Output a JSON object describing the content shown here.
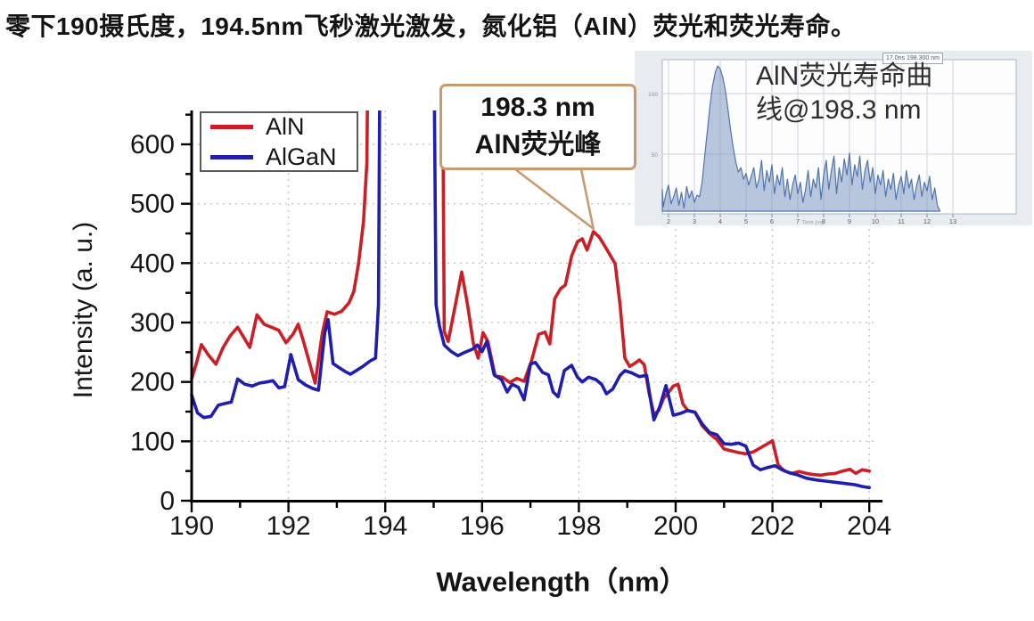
{
  "page": {
    "title": "零下190摄氏度，194.5nm飞秒激光激发，氮化铝（AlN）荧光和荧光寿命。"
  },
  "chart_data": [
    {
      "type": "line",
      "xlabel": "Wavelength（nm）",
      "ylabel": "Intensity (a. u.)",
      "xlim": [
        190,
        204
      ],
      "ylim": [
        0,
        657
      ],
      "x_ticks": [
        190,
        192,
        194,
        196,
        198,
        200,
        202,
        204
      ],
      "x_minor_ticks": [
        191,
        193,
        195,
        197,
        199,
        201,
        203
      ],
      "y_ticks": [
        0,
        100,
        200,
        300,
        400,
        500,
        600
      ],
      "y_minor_ticks": [
        50,
        150,
        250,
        350,
        450,
        550,
        650
      ],
      "grid": "dotted",
      "grid_color": "#c6c6c6",
      "axis_color": "#000000",
      "legend_position": "top-left",
      "note": "Both curves go off-scale (above plot top) between ~193.7 nm and ~195.1 nm (scattered 194.5 nm excitation laser region)",
      "series": [
        {
          "name": "AlN",
          "color": "#cb1f27",
          "points": [
            [
              190,
              205
            ],
            [
              190.1,
              232
            ],
            [
              190.2,
              263
            ],
            [
              190.35,
              245
            ],
            [
              190.5,
              230
            ],
            [
              190.65,
              258
            ],
            [
              190.8,
              278
            ],
            [
              190.95,
              292
            ],
            [
              191.1,
              272
            ],
            [
              191.2,
              258
            ],
            [
              191.35,
              313
            ],
            [
              191.5,
              297
            ],
            [
              191.65,
              292
            ],
            [
              191.8,
              287
            ],
            [
              191.95,
              266
            ],
            [
              192.1,
              281
            ],
            [
              192.2,
              297
            ],
            [
              192.3,
              271
            ],
            [
              192.45,
              228
            ],
            [
              192.55,
              198
            ],
            [
              192.7,
              282
            ],
            [
              192.8,
              318
            ],
            [
              192.95,
              314
            ],
            [
              193.1,
              319
            ],
            [
              193.25,
              333
            ],
            [
              193.35,
              352
            ],
            [
              193.45,
              400
            ],
            [
              193.55,
              470
            ],
            [
              193.62,
              570
            ],
            [
              193.66,
              910
            ],
            [
              195.17,
              910
            ],
            [
              195.22,
              285
            ],
            [
              195.3,
              268
            ],
            [
              195.45,
              330
            ],
            [
              195.58,
              385
            ],
            [
              195.7,
              330
            ],
            [
              195.82,
              265
            ],
            [
              195.92,
              240
            ],
            [
              196.02,
              283
            ],
            [
              196.12,
              268
            ],
            [
              196.27,
              210
            ],
            [
              196.42,
              208
            ],
            [
              196.57,
              199
            ],
            [
              196.72,
              206
            ],
            [
              196.87,
              201
            ],
            [
              197.02,
              235
            ],
            [
              197.17,
              280
            ],
            [
              197.3,
              284
            ],
            [
              197.4,
              264
            ],
            [
              197.5,
              340
            ],
            [
              197.62,
              357
            ],
            [
              197.72,
              363
            ],
            [
              197.85,
              412
            ],
            [
              197.97,
              436
            ],
            [
              198.07,
              441
            ],
            [
              198.17,
              422
            ],
            [
              198.3,
              453
            ],
            [
              198.42,
              444
            ],
            [
              198.52,
              431
            ],
            [
              198.65,
              413
            ],
            [
              198.75,
              399
            ],
            [
              198.85,
              330
            ],
            [
              198.95,
              240
            ],
            [
              199.05,
              226
            ],
            [
              199.15,
              231
            ],
            [
              199.25,
              237
            ],
            [
              199.35,
              229
            ],
            [
              199.45,
              182
            ],
            [
              199.55,
              145
            ],
            [
              199.65,
              152
            ],
            [
              199.75,
              172
            ],
            [
              199.85,
              182
            ],
            [
              199.95,
              193
            ],
            [
              200.05,
              196
            ],
            [
              200.15,
              163
            ],
            [
              200.25,
              152
            ],
            [
              200.4,
              149
            ],
            [
              200.55,
              126
            ],
            [
              200.7,
              113
            ],
            [
              200.85,
              103
            ],
            [
              201,
              87
            ],
            [
              201.15,
              84
            ],
            [
              201.3,
              81
            ],
            [
              201.45,
              79
            ],
            [
              201.6,
              82
            ],
            [
              201.75,
              89
            ],
            [
              201.9,
              96
            ],
            [
              202,
              101
            ],
            [
              202.12,
              60
            ],
            [
              202.25,
              50
            ],
            [
              202.4,
              46
            ],
            [
              202.55,
              49
            ],
            [
              202.7,
              46
            ],
            [
              202.85,
              44
            ],
            [
              203,
              43
            ],
            [
              203.15,
              45
            ],
            [
              203.3,
              46
            ],
            [
              203.45,
              50
            ],
            [
              203.6,
              53
            ],
            [
              203.72,
              46
            ],
            [
              203.85,
              52
            ],
            [
              204,
              50
            ]
          ]
        },
        {
          "name": "AlGaN",
          "color": "#201fad",
          "points": [
            [
              190,
              178
            ],
            [
              190.12,
              148
            ],
            [
              190.25,
              140
            ],
            [
              190.4,
              142
            ],
            [
              190.55,
              161
            ],
            [
              190.7,
              164
            ],
            [
              190.82,
              166
            ],
            [
              190.95,
              205
            ],
            [
              191.1,
              196
            ],
            [
              191.25,
              193
            ],
            [
              191.4,
              198
            ],
            [
              191.55,
              200
            ],
            [
              191.68,
              202
            ],
            [
              191.8,
              190
            ],
            [
              191.92,
              192
            ],
            [
              192.05,
              246
            ],
            [
              192.2,
              204
            ],
            [
              192.35,
              195
            ],
            [
              192.5,
              189
            ],
            [
              192.62,
              186
            ],
            [
              192.75,
              282
            ],
            [
              192.82,
              305
            ],
            [
              192.92,
              231
            ],
            [
              193.05,
              224
            ],
            [
              193.18,
              217
            ],
            [
              193.28,
              213
            ],
            [
              193.42,
              220
            ],
            [
              193.55,
              227
            ],
            [
              193.7,
              236
            ],
            [
              193.8,
              240
            ],
            [
              193.86,
              330
            ],
            [
              193.9,
              910
            ],
            [
              194.99,
              910
            ],
            [
              195.05,
              330
            ],
            [
              195.12,
              294
            ],
            [
              195.22,
              262
            ],
            [
              195.35,
              252
            ],
            [
              195.5,
              244
            ],
            [
              195.65,
              250
            ],
            [
              195.8,
              255
            ],
            [
              195.9,
              262
            ],
            [
              196,
              251
            ],
            [
              196.1,
              268
            ],
            [
              196.25,
              212
            ],
            [
              196.4,
              204
            ],
            [
              196.52,
              183
            ],
            [
              196.62,
              196
            ],
            [
              196.75,
              191
            ],
            [
              196.87,
              170
            ],
            [
              197,
              230
            ],
            [
              197.1,
              233
            ],
            [
              197.25,
              216
            ],
            [
              197.37,
              212
            ],
            [
              197.47,
              183
            ],
            [
              197.57,
              175
            ],
            [
              197.7,
              219
            ],
            [
              197.85,
              228
            ],
            [
              197.97,
              208
            ],
            [
              198.07,
              200
            ],
            [
              198.2,
              208
            ],
            [
              198.35,
              204
            ],
            [
              198.47,
              196
            ],
            [
              198.57,
              180
            ],
            [
              198.7,
              188
            ],
            [
              198.85,
              211
            ],
            [
              198.95,
              219
            ],
            [
              199.1,
              215
            ],
            [
              199.25,
              209
            ],
            [
              199.4,
              211
            ],
            [
              199.55,
              136
            ],
            [
              199.67,
              158
            ],
            [
              199.8,
              194
            ],
            [
              199.95,
              144
            ],
            [
              200.1,
              147
            ],
            [
              200.25,
              152
            ],
            [
              200.4,
              149
            ],
            [
              200.55,
              129
            ],
            [
              200.7,
              115
            ],
            [
              200.85,
              111
            ],
            [
              201,
              96
            ],
            [
              201.15,
              95
            ],
            [
              201.3,
              97
            ],
            [
              201.45,
              92
            ],
            [
              201.6,
              60
            ],
            [
              201.75,
              52
            ],
            [
              201.9,
              56
            ],
            [
              202.05,
              59
            ],
            [
              202.2,
              52
            ],
            [
              202.35,
              47
            ],
            [
              202.5,
              44
            ],
            [
              202.7,
              38
            ],
            [
              202.9,
              35
            ],
            [
              203.1,
              33
            ],
            [
              203.3,
              31
            ],
            [
              203.5,
              29
            ],
            [
              203.7,
              27
            ],
            [
              203.85,
              24
            ],
            [
              204,
              22
            ]
          ]
        }
      ],
      "annotation": {
        "lines": [
          "198.3 nm",
          "AlN荧光峰"
        ],
        "border_color": "#c79b6d",
        "target": [
          198.3,
          455
        ]
      }
    },
    {
      "type": "line",
      "name": "AlN fluorescence lifetime decay (inset)",
      "overlay_label": "AlN荧光寿命曲线@198.3 nm",
      "overlay_lines": [
        "AlN荧光寿命曲",
        "线@198.3 nm"
      ],
      "corner_label": "17.0ns 198.300 nm",
      "xlabel": "Time (ns)",
      "x_ticks": [
        2,
        3,
        4,
        5,
        6,
        7,
        8,
        9,
        10,
        11,
        12,
        13
      ],
      "y_tick_labels": [
        "100",
        "50"
      ],
      "peak_x": 4.0,
      "color": "#4f74ac",
      "fill_color": "#7490bc",
      "x_start": 1.6,
      "x_step": 0.1,
      "y_percent": [
        8,
        15,
        3,
        12,
        18,
        5,
        10,
        16,
        4,
        13,
        2,
        17,
        9,
        14,
        6,
        11,
        10,
        20,
        38,
        55,
        72,
        86,
        95,
        100,
        98,
        92,
        83,
        70,
        56,
        44,
        34,
        27,
        30,
        22,
        26,
        18,
        24,
        30,
        16,
        22,
        35,
        14,
        28,
        20,
        32,
        12,
        25,
        18,
        30,
        10,
        22,
        8,
        18,
        25,
        12,
        20,
        6,
        15,
        28,
        10,
        22,
        16,
        30,
        8,
        25,
        35,
        15,
        28,
        38,
        12,
        30,
        20,
        36,
        25,
        40,
        18,
        32,
        24,
        38,
        15,
        28,
        35,
        20,
        30,
        12,
        25,
        18,
        28,
        10,
        22,
        15,
        26,
        8,
        18,
        24,
        12,
        28,
        16,
        22,
        8,
        18,
        25,
        10,
        20,
        14,
        24,
        8,
        16,
        4,
        0
      ]
    }
  ]
}
